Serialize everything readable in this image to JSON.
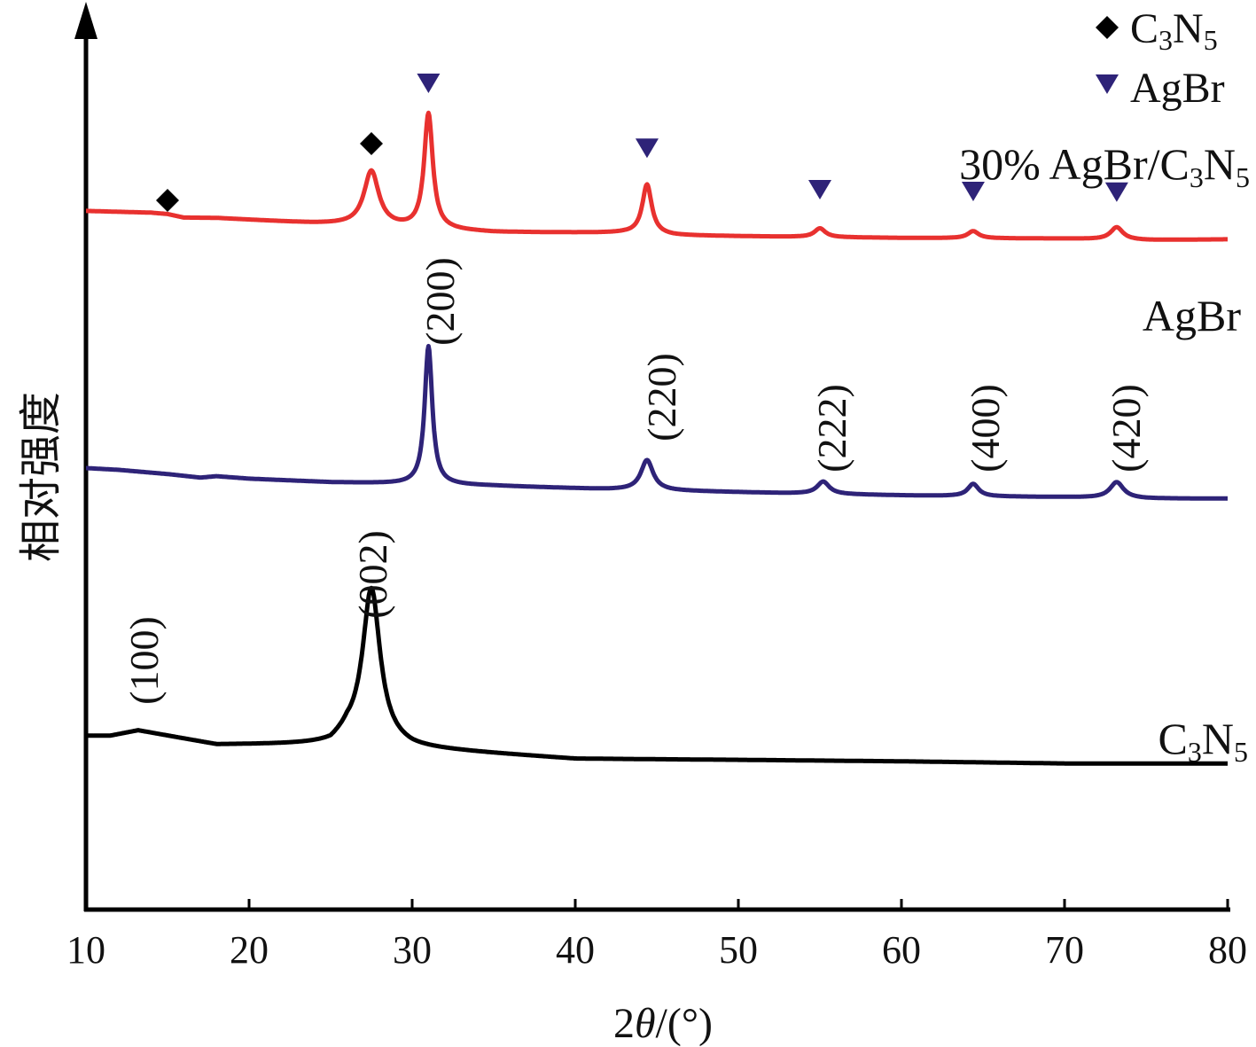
{
  "chart_data": {
    "type": "line",
    "xlabel_prefix": "2",
    "xlabel_symbol": "θ",
    "xlabel_suffix": "/(°)",
    "ylabel": "相对强度",
    "xlim": [
      10,
      80
    ],
    "xticks": [
      "10",
      "20",
      "30",
      "40",
      "50",
      "60",
      "70",
      "80"
    ],
    "legend": {
      "placement": "top-right",
      "entries": [
        {
          "marker": "diamond",
          "color": "#000000",
          "label_main": "C",
          "sub1": "3",
          "label_mid": "N",
          "sub2": "5"
        },
        {
          "marker": "triangle-down",
          "color": "#2e2378",
          "label_main": "AgBr"
        }
      ]
    },
    "series": [
      {
        "name_main": "30% AgBr/C",
        "name_sub1": "3",
        "name_mid": "N",
        "name_sub2": "5",
        "color": "#e8312f",
        "baseline": [
          [
            10,
            0.05
          ],
          [
            14,
            0.0
          ],
          [
            15,
            -0.04
          ],
          [
            16,
            -0.14
          ],
          [
            18,
            -0.15
          ],
          [
            24,
            -0.3
          ],
          [
            25.5,
            -0.33
          ],
          [
            30,
            -0.45
          ],
          [
            35,
            -0.55
          ],
          [
            43,
            -0.57
          ],
          [
            46,
            -0.64
          ],
          [
            55,
            -0.69
          ],
          [
            60,
            -0.71
          ],
          [
            70,
            -0.73
          ],
          [
            75,
            -0.77
          ],
          [
            80,
            -0.75
          ]
        ],
        "peaks": [
          {
            "x": 27.5,
            "h": 1.55,
            "w": 0.55
          },
          {
            "x": 31.0,
            "h": 3.25,
            "w": 0.32
          },
          {
            "x": 44.4,
            "h": 1.4,
            "w": 0.35
          },
          {
            "x": 55.0,
            "h": 0.25,
            "w": 0.4
          },
          {
            "x": 64.4,
            "h": 0.2,
            "w": 0.4
          },
          {
            "x": 73.2,
            "h": 0.35,
            "w": 0.45
          }
        ],
        "markers": [
          {
            "x": 15.0,
            "y": 0.35,
            "type": "diamond"
          },
          {
            "x": 27.5,
            "y": 1.95,
            "type": "diamond"
          },
          {
            "x": 31.0,
            "y": 3.65,
            "type": "triangle"
          },
          {
            "x": 44.4,
            "y": 1.82,
            "type": "triangle"
          },
          {
            "x": 55.0,
            "y": 0.65,
            "type": "triangle"
          },
          {
            "x": 64.4,
            "y": 0.6,
            "type": "triangle"
          },
          {
            "x": 73.2,
            "y": 0.58,
            "type": "triangle"
          }
        ]
      },
      {
        "name_main": "AgBr",
        "color": "#2e2378",
        "baseline": [
          [
            10,
            0.05
          ],
          [
            12,
            0.0
          ],
          [
            15,
            -0.12
          ],
          [
            17,
            -0.22
          ],
          [
            18,
            -0.18
          ],
          [
            20,
            -0.25
          ],
          [
            25,
            -0.35
          ],
          [
            28,
            -0.38
          ],
          [
            35,
            -0.45
          ],
          [
            42,
            -0.55
          ],
          [
            50,
            -0.63
          ],
          [
            55,
            -0.68
          ],
          [
            60,
            -0.72
          ],
          [
            65,
            -0.75
          ],
          [
            70,
            -0.77
          ],
          [
            75,
            -0.81
          ],
          [
            80,
            -0.81
          ]
        ],
        "peaks": [
          {
            "x": 31.0,
            "h": 3.9,
            "w": 0.28
          },
          {
            "x": 44.4,
            "h": 0.85,
            "w": 0.45
          },
          {
            "x": 55.2,
            "h": 0.35,
            "w": 0.45
          },
          {
            "x": 64.4,
            "h": 0.35,
            "w": 0.4
          },
          {
            "x": 73.2,
            "h": 0.45,
            "w": 0.5
          }
        ],
        "annotations": [
          "(200)",
          "(220)",
          "(222)",
          "(400)",
          "(420)"
        ]
      },
      {
        "name_main": "C",
        "name_sub1": "3",
        "name_mid": "N",
        "name_sub2": "5",
        "color": "#000000",
        "baseline": [
          [
            10,
            0.0
          ],
          [
            11.5,
            0.0
          ],
          [
            13.2,
            0.15
          ],
          [
            15,
            0.0
          ],
          [
            18,
            -0.25
          ],
          [
            25,
            -0.25
          ],
          [
            26,
            0.0
          ],
          [
            30,
            -0.35
          ],
          [
            35,
            -0.5
          ],
          [
            40,
            -0.65
          ],
          [
            50,
            -0.68
          ],
          [
            60,
            -0.72
          ],
          [
            70,
            -0.78
          ],
          [
            80,
            -0.78
          ]
        ],
        "peaks": [
          {
            "x": 27.5,
            "h": 4.3,
            "w": 0.65
          }
        ],
        "annotations": [
          "(100)",
          "(002)"
        ]
      }
    ]
  }
}
